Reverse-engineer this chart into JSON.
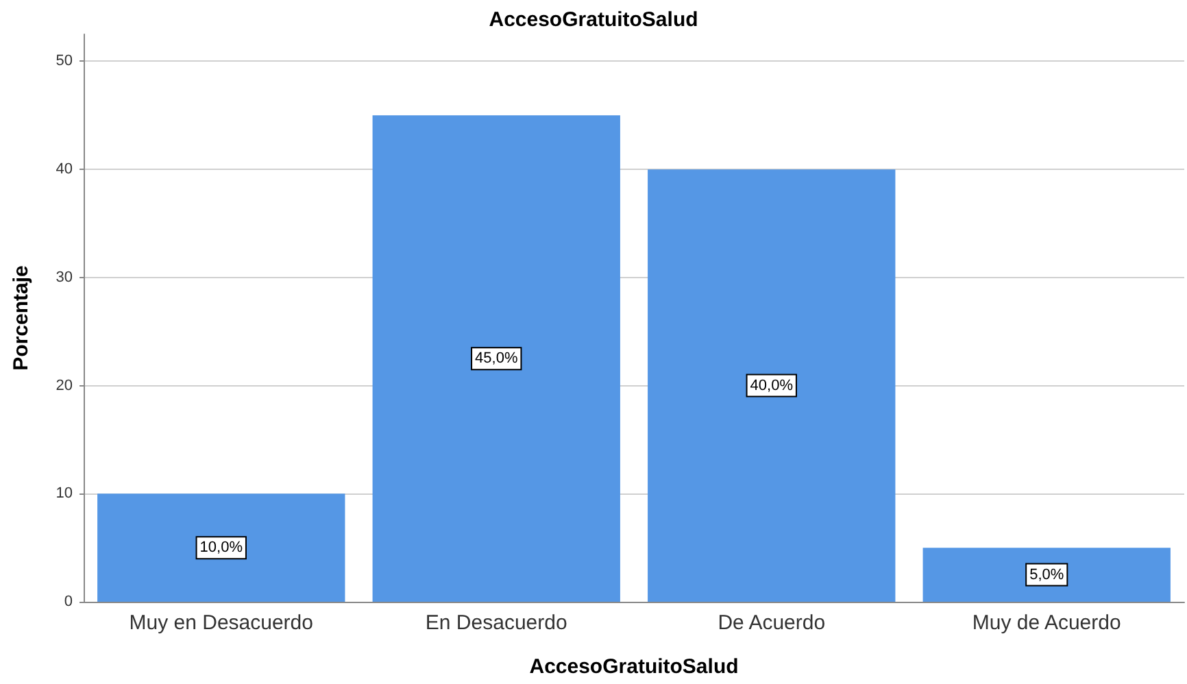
{
  "chart_data": {
    "type": "bar",
    "title": "AccesoGratuitoSalud",
    "xlabel": "AccesoGratuitoSalud",
    "ylabel": "Porcentaje",
    "categories": [
      "Muy en Desacuerdo",
      "En Desacuerdo",
      "De Acuerdo",
      "Muy de Acuerdo"
    ],
    "values": [
      10,
      45,
      40,
      5
    ],
    "value_labels": [
      "10,0%",
      "45,0%",
      "40,0%",
      "5,0%"
    ],
    "color": "#5597e5",
    "ylim": [
      0,
      52.5
    ],
    "yticks": [
      0,
      10,
      20,
      30,
      40,
      50
    ],
    "grid": "y"
  }
}
